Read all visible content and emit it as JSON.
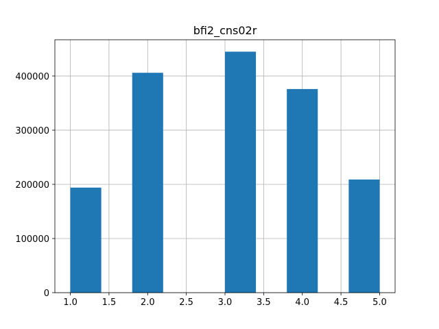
{
  "chart_data": {
    "type": "bar",
    "title": "bfi2_cns02r",
    "xlabel": "",
    "ylabel": "",
    "grid": true,
    "bar_color": "#1f77b4",
    "xlim": [
      0.8,
      5.2
    ],
    "ylim": [
      0,
      467000
    ],
    "bins": [
      {
        "x0": 1.0,
        "x1": 1.4,
        "value": 194000
      },
      {
        "x0": 1.4,
        "x1": 1.8,
        "value": 0
      },
      {
        "x0": 1.8,
        "x1": 2.2,
        "value": 406000
      },
      {
        "x0": 2.2,
        "x1": 2.6,
        "value": 0
      },
      {
        "x0": 2.6,
        "x1": 3.0,
        "value": 0
      },
      {
        "x0": 3.0,
        "x1": 3.4,
        "value": 445000
      },
      {
        "x0": 3.4,
        "x1": 3.8,
        "value": 0
      },
      {
        "x0": 3.8,
        "x1": 4.2,
        "value": 376000
      },
      {
        "x0": 4.2,
        "x1": 4.6,
        "value": 0
      },
      {
        "x0": 4.6,
        "x1": 5.0,
        "value": 209000
      }
    ],
    "x_ticks": [
      {
        "value": 1.0,
        "label": "1.0"
      },
      {
        "value": 1.5,
        "label": "1.5"
      },
      {
        "value": 2.0,
        "label": "2.0"
      },
      {
        "value": 2.5,
        "label": "2.5"
      },
      {
        "value": 3.0,
        "label": "3.0"
      },
      {
        "value": 3.5,
        "label": "3.5"
      },
      {
        "value": 4.0,
        "label": "4.0"
      },
      {
        "value": 4.5,
        "label": "4.5"
      },
      {
        "value": 5.0,
        "label": "5.0"
      }
    ],
    "y_ticks": [
      {
        "value": 0,
        "label": "0"
      },
      {
        "value": 100000,
        "label": "100000"
      },
      {
        "value": 200000,
        "label": "200000"
      },
      {
        "value": 300000,
        "label": "300000"
      },
      {
        "value": 400000,
        "label": "400000"
      }
    ]
  }
}
